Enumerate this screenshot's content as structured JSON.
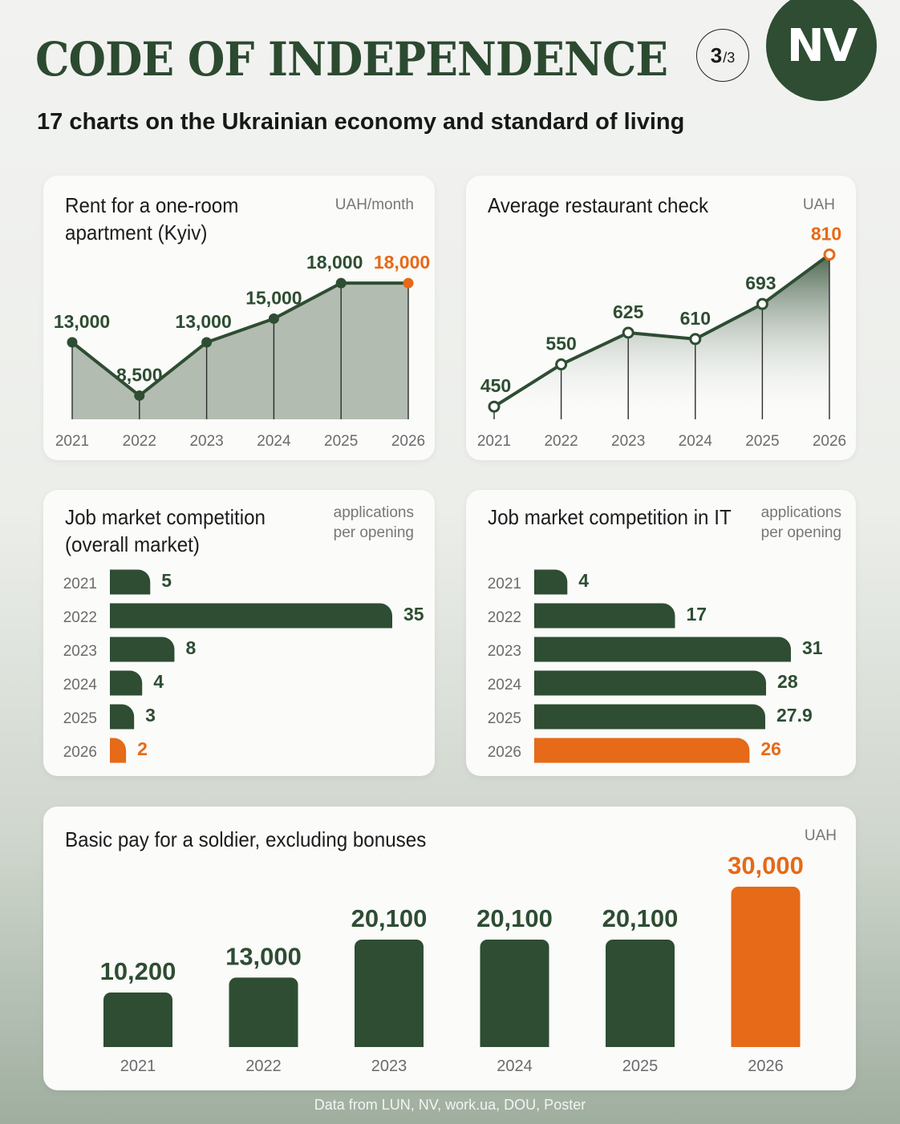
{
  "header": {
    "title": "CODE OF INDEPENDENCE",
    "subtitle": "17 charts on the Ukrainian economy and standard of living",
    "page_current": "3",
    "page_total": "/3",
    "logo_text": "NV"
  },
  "colors": {
    "dark_green": "#2e4d32",
    "orange": "#e66a17",
    "area_fill": "#b3bcb1"
  },
  "footer": {
    "source": "Data from LUN, NV, work.ua, DOU, Poster"
  },
  "chart_data": [
    {
      "type": "area",
      "title": "Rent for a one-room apartment (Kyiv)",
      "title_lines": [
        "Rent for a one-room",
        "apartment (Kyiv)"
      ],
      "unit": "UAH/month",
      "x": [
        "2021",
        "2022",
        "2023",
        "2024",
        "2025",
        "2026"
      ],
      "values": [
        13000,
        8500,
        13000,
        15000,
        18000,
        18000
      ],
      "labels": [
        "13,000",
        "8,500",
        "13,000",
        "15,000",
        "18,000",
        "18,000"
      ],
      "ylim": [
        6500,
        19500
      ],
      "highlight_last": true,
      "grid": false
    },
    {
      "type": "line",
      "title": "Average restaurant check",
      "title_lines": [
        "Average restaurant check"
      ],
      "unit": "UAH",
      "x": [
        "2021",
        "2022",
        "2023",
        "2024",
        "2025",
        "2026"
      ],
      "values": [
        450,
        550,
        625,
        610,
        693,
        810
      ],
      "labels": [
        "450",
        "550",
        "625",
        "610",
        "693",
        "810"
      ],
      "ylim": [
        420,
        830
      ],
      "highlight_last": true,
      "grid": false
    },
    {
      "type": "bar",
      "orientation": "horizontal",
      "title": "Job market competition (overall market)",
      "title_lines": [
        "Job market competition",
        "(overall market)"
      ],
      "unit_lines": [
        "applications",
        "per opening"
      ],
      "categories": [
        "2021",
        "2022",
        "2023",
        "2024",
        "2025",
        "2026"
      ],
      "values": [
        5,
        35,
        8,
        4,
        3,
        2
      ],
      "labels": [
        "5",
        "35",
        "8",
        "4",
        "3",
        "2"
      ],
      "xlim": [
        0,
        35
      ],
      "highlight_last": true
    },
    {
      "type": "bar",
      "orientation": "horizontal",
      "title": "Job market competition in IT",
      "title_lines": [
        "Job market competition in IT"
      ],
      "unit_lines": [
        "applications",
        "per opening"
      ],
      "categories": [
        "2021",
        "2022",
        "2023",
        "2024",
        "2025",
        "2026"
      ],
      "values": [
        4,
        17,
        31,
        28,
        27.9,
        26
      ],
      "labels": [
        "4",
        "17",
        "31",
        "28",
        "27.9",
        "26"
      ],
      "xlim": [
        0,
        31
      ],
      "highlight_last": true
    },
    {
      "type": "bar",
      "orientation": "vertical",
      "title": "Basic pay for a soldier, excluding bonuses",
      "title_lines": [
        "Basic pay for a soldier, excluding bonuses"
      ],
      "unit": "UAH",
      "categories": [
        "2021",
        "2022",
        "2023",
        "2024",
        "2025",
        "2026"
      ],
      "values": [
        10200,
        13000,
        20100,
        20100,
        20100,
        30000
      ],
      "labels": [
        "10,200",
        "13,000",
        "20,100",
        "20,100",
        "20,100",
        "30,000"
      ],
      "ylim": [
        0,
        30000
      ],
      "highlight_last": true
    }
  ]
}
